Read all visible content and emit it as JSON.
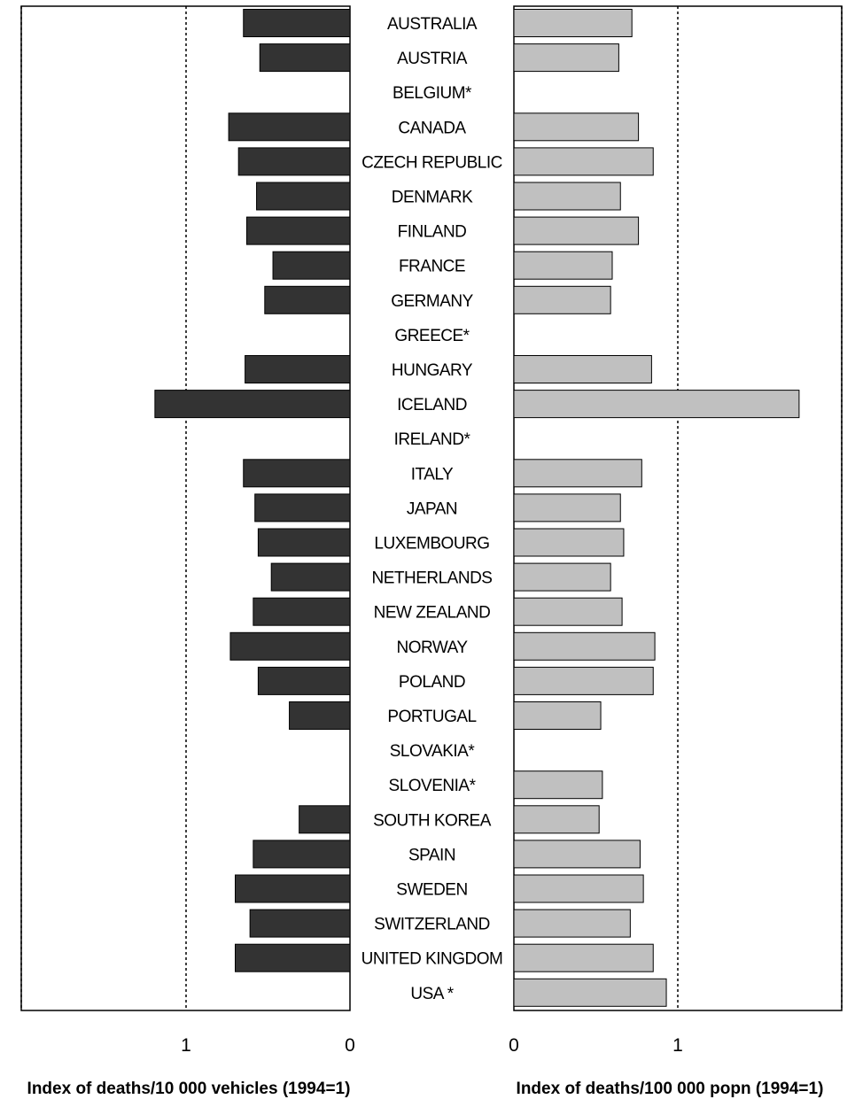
{
  "chart_data": [
    {
      "type": "bar",
      "orientation": "horizontal",
      "direction": "leftward",
      "xlabel": "Index of deaths/10 000 vehicles (1994=1)",
      "ylabel": "",
      "xlim": [
        0,
        2
      ],
      "xticks": [
        "1",
        "0"
      ],
      "reference_line": 1,
      "bar_color": "#333333",
      "categories": [
        "AUSTRALIA",
        "AUSTRIA",
        "BELGIUM*",
        "CANADA",
        "CZECH REPUBLIC",
        "DENMARK",
        "FINLAND",
        "FRANCE",
        "GERMANY",
        "GREECE*",
        "HUNGARY",
        "ICELAND",
        "IRELAND*",
        "ITALY",
        "JAPAN",
        "LUXEMBOURG",
        "NETHERLANDS",
        "NEW ZEALAND",
        "NORWAY",
        "POLAND",
        "PORTUGAL",
        "SLOVAKIA*",
        "SLOVENIA*",
        "SOUTH KOREA",
        "SPAIN",
        "SWEDEN",
        "SWITZERLAND",
        "UNITED KINGDOM",
        "USA *"
      ],
      "values": [
        0.65,
        0.55,
        null,
        0.74,
        0.68,
        0.57,
        0.63,
        0.47,
        0.52,
        null,
        0.64,
        1.19,
        null,
        0.65,
        0.58,
        0.56,
        0.48,
        0.59,
        0.73,
        0.56,
        0.37,
        null,
        null,
        0.31,
        0.59,
        0.7,
        0.61,
        0.7,
        null
      ]
    },
    {
      "type": "bar",
      "orientation": "horizontal",
      "direction": "rightward",
      "xlabel": "Index of deaths/100 000 popn (1994=1)",
      "ylabel": "",
      "xlim": [
        0,
        2
      ],
      "xticks": [
        "0",
        "1"
      ],
      "reference_line": 1,
      "bar_color": "#c0c0c0",
      "categories": [
        "AUSTRALIA",
        "AUSTRIA",
        "BELGIUM*",
        "CANADA",
        "CZECH REPUBLIC",
        "DENMARK",
        "FINLAND",
        "FRANCE",
        "GERMANY",
        "GREECE*",
        "HUNGARY",
        "ICELAND",
        "IRELAND*",
        "ITALY",
        "JAPAN",
        "LUXEMBOURG",
        "NETHERLANDS",
        "NEW ZEALAND",
        "NORWAY",
        "POLAND",
        "PORTUGAL",
        "SLOVAKIA*",
        "SLOVENIA*",
        "SOUTH KOREA",
        "SPAIN",
        "SWEDEN",
        "SWITZERLAND",
        "UNITED KINGDOM",
        "USA *"
      ],
      "values": [
        0.72,
        0.64,
        null,
        0.76,
        0.85,
        0.65,
        0.76,
        0.6,
        0.59,
        null,
        0.84,
        1.74,
        null,
        0.78,
        0.65,
        0.67,
        0.59,
        0.66,
        0.86,
        0.85,
        0.53,
        null,
        0.54,
        0.52,
        0.77,
        0.79,
        0.71,
        0.85,
        0.93
      ]
    }
  ]
}
